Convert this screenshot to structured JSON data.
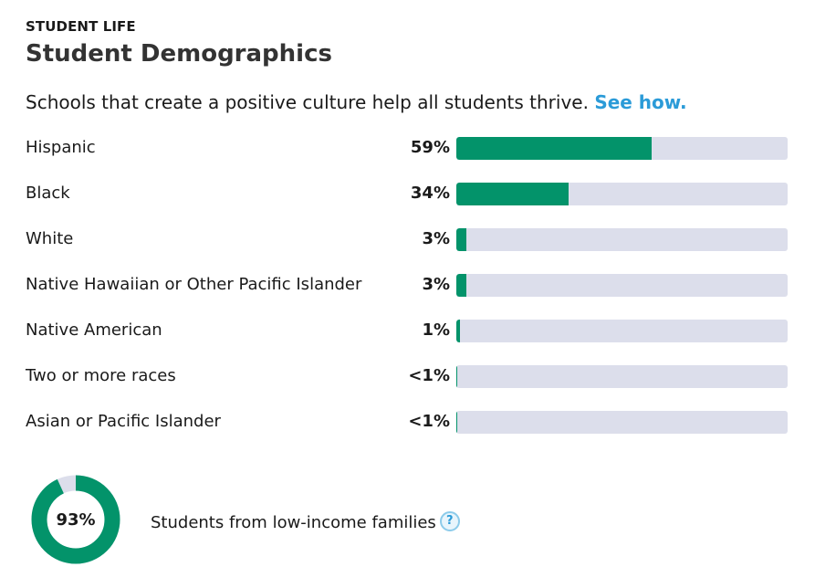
{
  "header": {
    "section": "STUDENT LIFE",
    "title": "Student Demographics"
  },
  "intro": {
    "text": "Schools that create a positive culture help all students thrive.",
    "link": "See how."
  },
  "chart_data": {
    "type": "bar",
    "orientation": "horizontal",
    "categories": [
      "Hispanic",
      "Black",
      "White",
      "Native Hawaiian or Other Pacific Islander",
      "Native American",
      "Two or more races",
      "Asian or Pacific Islander"
    ],
    "value_labels": [
      "59%",
      "34%",
      "3%",
      "3%",
      "1%",
      "<1%",
      "<1%"
    ],
    "values": [
      59,
      34,
      3,
      3,
      1,
      0.3,
      0.1
    ],
    "xlim": [
      0,
      100
    ],
    "grid": false,
    "colors": {
      "fill": "#03936a",
      "track": "#dcdeeb"
    }
  },
  "low_income": {
    "type": "donut",
    "value": 93,
    "value_label": "93%",
    "label": "Students from low-income families",
    "help_icon": "question-circle-icon",
    "help_glyph": "?",
    "colors": {
      "fill": "#03936a",
      "track": "#dcdeeb"
    }
  }
}
